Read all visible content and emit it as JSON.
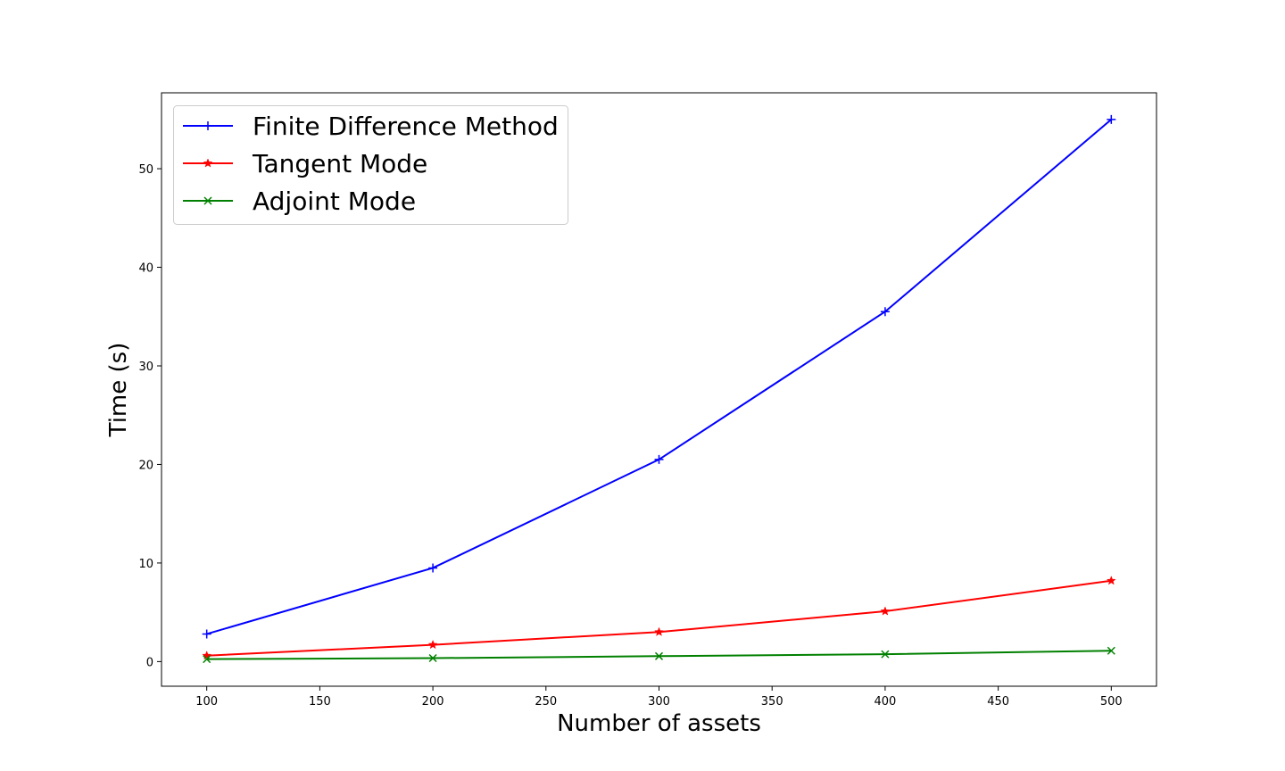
{
  "chart_data": {
    "type": "line",
    "title": "",
    "xlabel": "Number of assets",
    "ylabel": "Time (s)",
    "xlim": [
      80,
      520
    ],
    "ylim": [
      -2.5,
      57.7
    ],
    "xticks": [
      100,
      150,
      200,
      250,
      300,
      350,
      400,
      450,
      500
    ],
    "yticks": [
      0,
      10,
      20,
      30,
      40,
      50
    ],
    "grid": false,
    "legend_position": "top-left",
    "x": [
      100,
      200,
      300,
      400,
      500
    ],
    "series": [
      {
        "name": "Finite Difference Method",
        "color": "#0000ff",
        "marker": "plus",
        "values": [
          2.8,
          9.5,
          20.5,
          35.5,
          55.0
        ]
      },
      {
        "name": "Tangent Mode",
        "color": "#ff0000",
        "marker": "star",
        "values": [
          0.6,
          1.7,
          3.0,
          5.1,
          8.2
        ]
      },
      {
        "name": "Adjoint Mode",
        "color": "#008000",
        "marker": "x",
        "values": [
          0.25,
          0.35,
          0.55,
          0.75,
          1.1
        ]
      }
    ]
  }
}
